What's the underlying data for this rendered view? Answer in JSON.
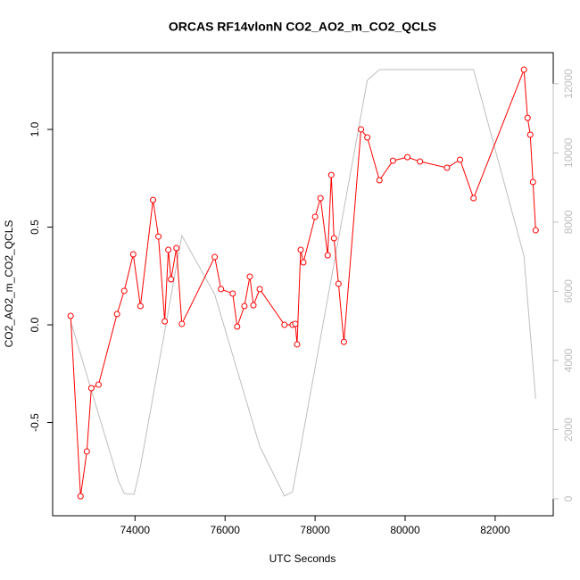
{
  "chart_data": {
    "type": "line",
    "title": "ORCAS RF14vlonN CO2_AO2_m_CO2_QCLS",
    "x_label": "UTC Seconds",
    "y_label": "CO2_AO2_m_CO2_QCLS",
    "xlim": [
      72170,
      83290
    ],
    "ylim": [
      -0.977,
      1.393
    ],
    "y2lim": [
      -490,
      12900
    ],
    "xticks": [
      74000,
      76000,
      78000,
      80000,
      82000
    ],
    "yticks": [
      -0.5,
      {
        "value": 0.0,
        "label": "0.0"
      },
      {
        "value": 0.5,
        "label": "0.5"
      },
      {
        "value": 1.0,
        "label": "1.0"
      }
    ],
    "y2ticks": [
      0,
      2000,
      4000,
      6000,
      8000,
      10000,
      12000
    ],
    "series": [
      {
        "color": "#bebebe",
        "axis": "y2",
        "markers": false,
        "x": [
          72570,
          73640,
          73760,
          73980,
          74120,
          75040,
          75770,
          76770,
          77320,
          77500,
          79160,
          79430,
          81520,
          82640,
          82900
        ],
        "values": [
          5135,
          490,
          155,
          130,
          930,
          7610,
          5910,
          1520,
          80,
          205,
          12100,
          12410,
          12410,
          7020,
          2890
        ]
      },
      {
        "color": "#ff0000",
        "markers": true,
        "x": [
          72570,
          72790,
          72930,
          73030,
          73190,
          73600,
          73760,
          73960,
          74120,
          74400,
          74520,
          74660,
          74740,
          74800,
          74920,
          75040,
          75770,
          75910,
          76170,
          76270,
          76430,
          76550,
          76630,
          76770,
          77320,
          77500,
          77560,
          77600,
          77680,
          77740,
          78000,
          78120,
          78280,
          78360,
          78420,
          78520,
          78640,
          79020,
          79160,
          79430,
          79730,
          80050,
          80330,
          80930,
          81220,
          81520,
          82640,
          82720,
          82780,
          82840,
          82900
        ],
        "values": [
          0.046,
          -0.877,
          -0.648,
          -0.324,
          -0.306,
          0.055,
          0.174,
          0.361,
          0.096,
          0.639,
          0.452,
          0.018,
          0.384,
          0.233,
          0.393,
          0.005,
          0.347,
          0.183,
          0.16,
          -0.009,
          0.096,
          0.247,
          0.1,
          0.183,
          0.0,
          0.0,
          0.005,
          -0.1,
          0.384,
          0.32,
          0.553,
          0.648,
          0.356,
          0.767,
          0.443,
          0.21,
          -0.087,
          1.0,
          0.959,
          0.74,
          0.84,
          0.858,
          0.836,
          0.804,
          0.845,
          0.648,
          1.306,
          1.059,
          0.973,
          0.731,
          0.484
        ]
      }
    ]
  }
}
